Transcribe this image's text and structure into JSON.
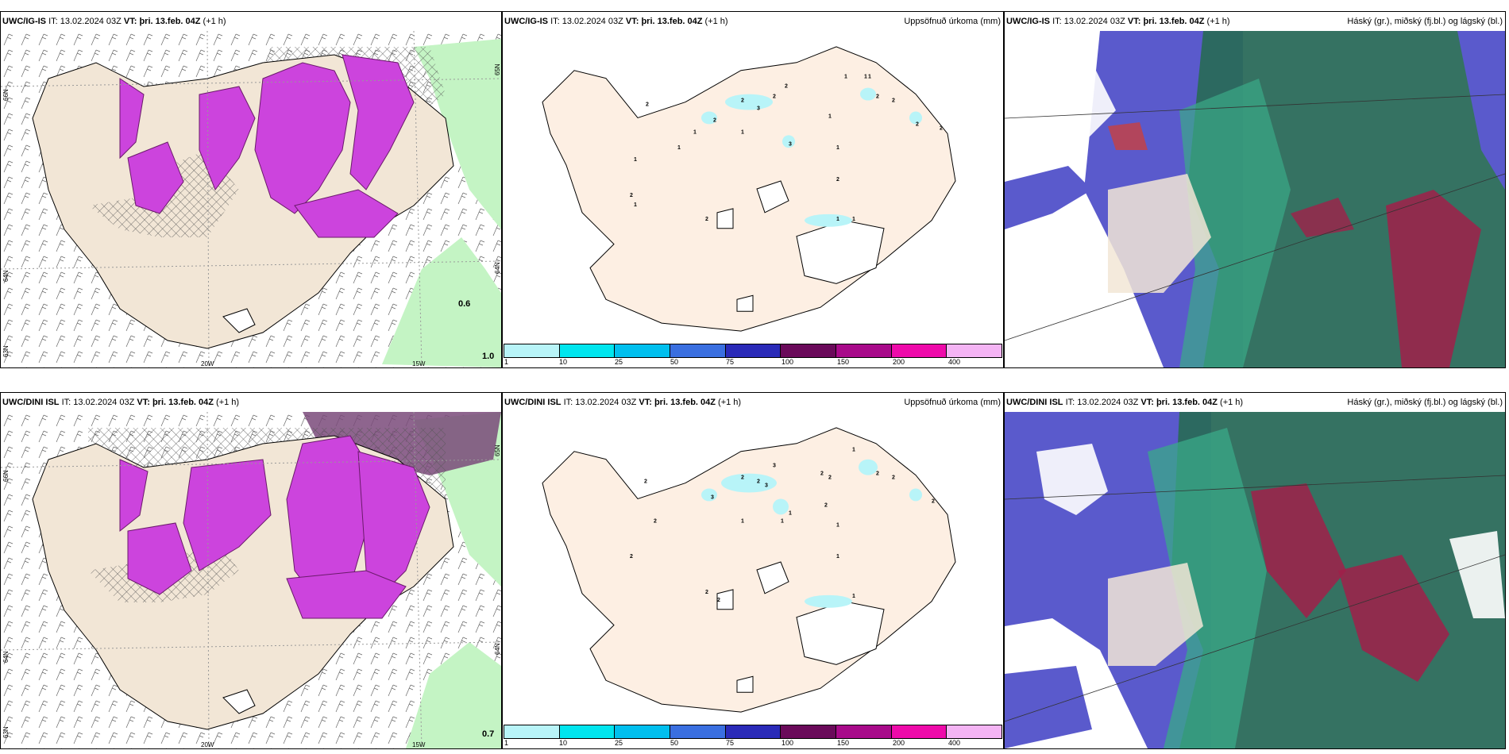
{
  "rows": [
    {
      "model": "UWC/IG-IS",
      "it_label": "IT:",
      "it_value": "13.02.2024 03Z",
      "vt_label": "VT:",
      "vt_value": "þri. 13.feb. 04Z",
      "lead": "(+1 h)",
      "corner_values": [
        "0.6",
        "1.0"
      ]
    },
    {
      "model": "UWC/DINI ISL",
      "it_label": "IT:",
      "it_value": "13.02.2024 03Z",
      "vt_label": "VT:",
      "vt_value": "þri. 13.feb. 04Z",
      "lead": "(+1 h)",
      "corner_values": [
        "0.7"
      ]
    }
  ],
  "precip_title": "Uppsöfnuð úrkoma (mm)",
  "cloud_title": "Háský (gr.), miðský (fj.bl.) og lágský (bl.)",
  "axis_labels": {
    "lat_66": "66N",
    "lat_64": "64N",
    "lat_63": "63N",
    "lat_65_right": "65N",
    "lat_64_right": "64N",
    "lon_20": "20W",
    "lon_15": "15W"
  },
  "colorbar": {
    "labels": [
      "1",
      "10",
      "25",
      "50",
      "75",
      "100",
      "150",
      "200",
      "400"
    ],
    "colors": [
      "#b8f4f8",
      "#00e5ee",
      "#00bfee",
      "#3a6fe0",
      "#2a2ab8",
      "#6a0a5a",
      "#a80a8a",
      "#ee0aaa",
      "#f4b4f4"
    ]
  },
  "map_colors": {
    "land": "#f2e6d6",
    "land_precip": "#fdefe3",
    "precip_purple": "#cc44dd",
    "precip_light_green": "#c4f4c4",
    "cloud_blue": "#5a5acc",
    "cloud_green": "#2a6a5a",
    "cloud_red": "#a0204a"
  },
  "precip_numbers_top": [
    "2",
    "2",
    "3",
    "2",
    "2",
    "2",
    "1",
    "1",
    "2",
    "1",
    "2",
    "3",
    "1",
    "1",
    "2",
    "2",
    "1",
    "1",
    "1",
    "2",
    "1",
    "2",
    "2",
    "1",
    "1",
    "1"
  ],
  "precip_numbers_bottom": [
    "2",
    "3",
    "2",
    "2",
    "3",
    "3",
    "2",
    "1",
    "2",
    "2",
    "2",
    "1",
    "1",
    "2",
    "2",
    "2",
    "1",
    "1",
    "2",
    "1",
    "2",
    "2",
    "1"
  ]
}
